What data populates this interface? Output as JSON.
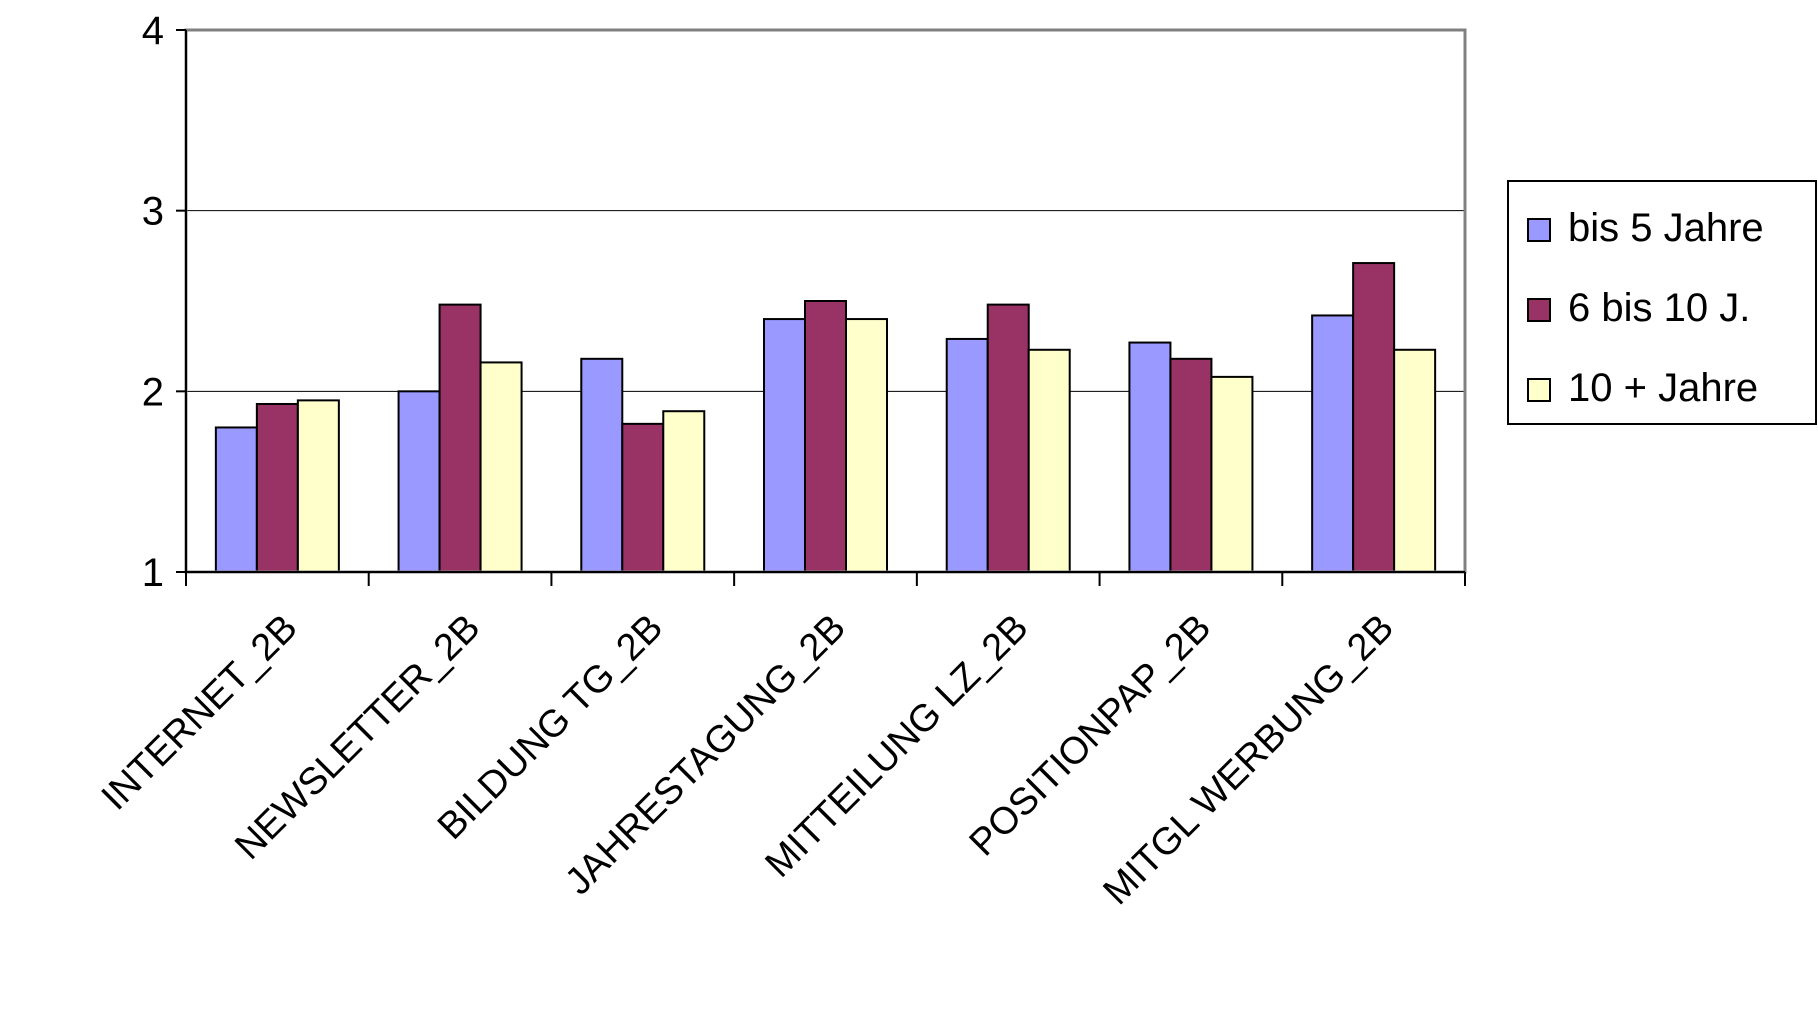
{
  "chart_data": {
    "type": "bar",
    "title": "",
    "xlabel": "",
    "ylabel": "",
    "ylim": [
      1,
      4
    ],
    "yticks": [
      1,
      2,
      3,
      4
    ],
    "grid": true,
    "legend_position": "right",
    "categories": [
      "INTERNET_2B",
      "NEWSLETTER_2B",
      "BILDUNG TG_2B",
      "JAHRESTAGUNG_2B",
      "MITTEILUNG LZ_2B",
      "POSITIONPAP_2B",
      "MITGL WERBUNG_2B"
    ],
    "series": [
      {
        "name": "bis 5 Jahre",
        "color": "#9999ff",
        "values": [
          1.8,
          2.0,
          2.18,
          2.4,
          2.29,
          2.27,
          2.42
        ]
      },
      {
        "name": "6 bis 10 J.",
        "color": "#993366",
        "values": [
          1.93,
          2.48,
          1.82,
          2.5,
          2.48,
          2.18,
          2.71
        ]
      },
      {
        "name": "10 + Jahre",
        "color": "#ffffcc",
        "values": [
          1.95,
          2.16,
          1.89,
          2.4,
          2.23,
          2.08,
          2.23
        ]
      }
    ]
  }
}
